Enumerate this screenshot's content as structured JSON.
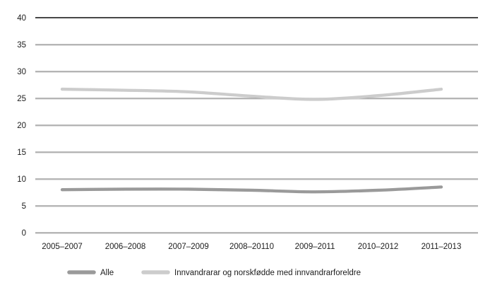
{
  "chart_data": {
    "type": "line",
    "title": "",
    "xlabel": "",
    "ylabel": "",
    "categories": [
      "2005–2007",
      "2006–2008",
      "2007–2009",
      "2008–20110",
      "2009–2011",
      "2010–2012",
      "2011–2013"
    ],
    "series": [
      {
        "name": "Alle",
        "color": "#9a9a9a",
        "values": [
          8.0,
          8.1,
          8.1,
          7.9,
          7.6,
          7.9,
          8.5
        ]
      },
      {
        "name": "Innvandrarar og norskfødde med innvandrarforeldre",
        "color": "#cccccc",
        "values": [
          26.7,
          26.5,
          26.2,
          25.4,
          24.8,
          25.5,
          26.7
        ]
      }
    ],
    "ylim": [
      0,
      40
    ],
    "yticks": [
      0,
      5,
      10,
      15,
      20,
      25,
      30,
      35,
      40
    ],
    "grid": "horizontal",
    "legend_position": "bottom-left",
    "colors": {
      "background": "#ffffff",
      "gridline": "#8f8f8f",
      "gridline_shadow": "#d9d9d9",
      "top_border": "#2d2d2d",
      "text": "#1c1c1c"
    }
  }
}
